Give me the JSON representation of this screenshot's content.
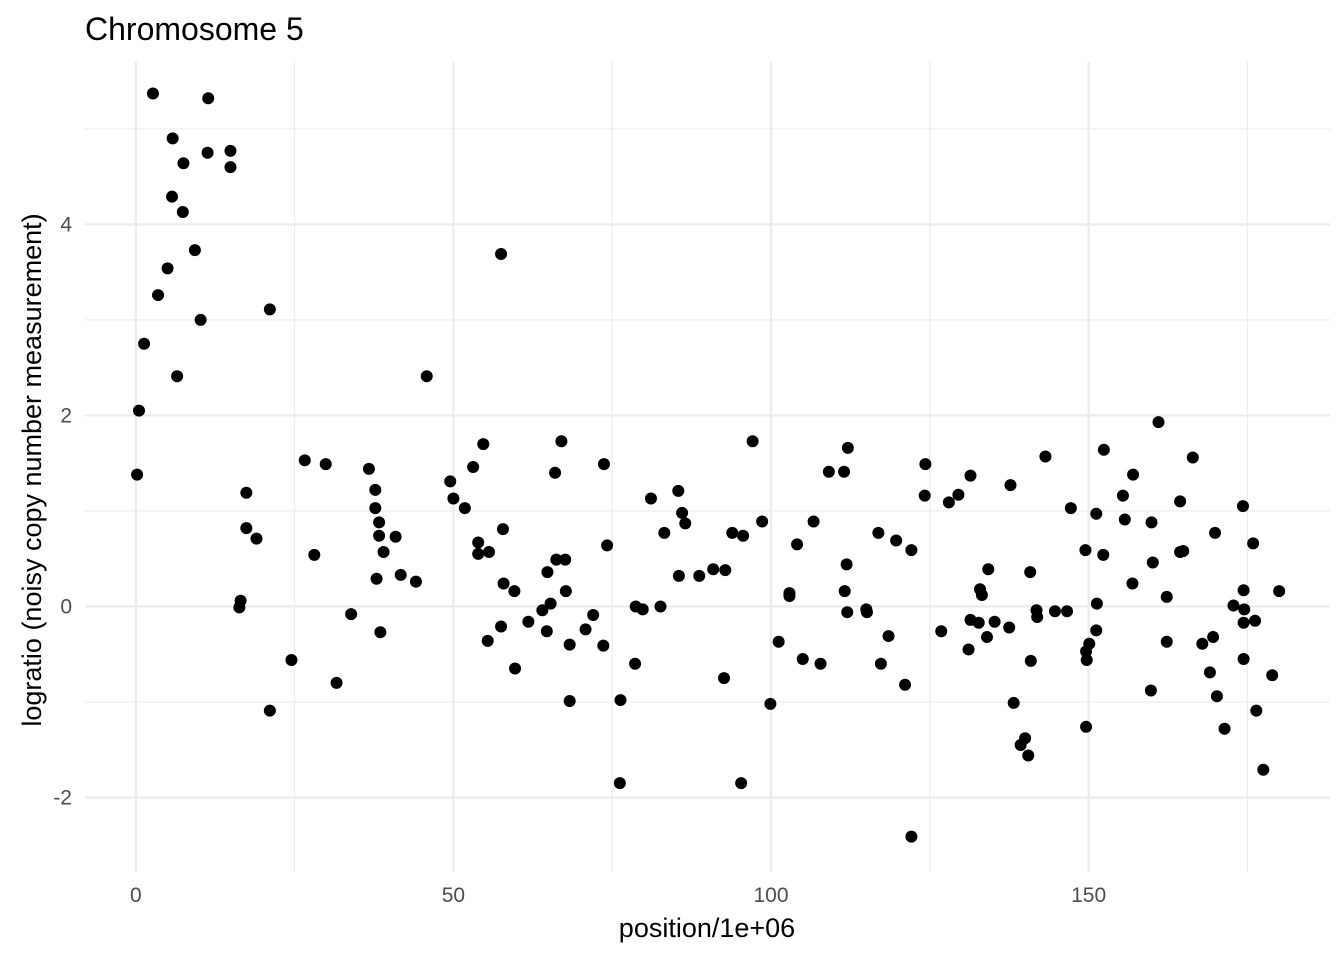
{
  "chart_data": {
    "type": "scatter",
    "title": "Chromosome 5",
    "xlabel": "position/1e+06",
    "ylabel": "logratio (noisy copy number measurement)",
    "xlim": [
      -8,
      188
    ],
    "ylim": [
      -2.78,
      5.7
    ],
    "x_ticks": [
      0,
      50,
      100,
      150
    ],
    "x_tick_labels": [
      "0",
      "50",
      "100",
      "150"
    ],
    "y_ticks": [
      -2,
      0,
      2,
      4
    ],
    "y_tick_labels": [
      "-2",
      "0",
      "2",
      "4"
    ],
    "x_minor": [
      25,
      75,
      125,
      175
    ],
    "y_minor": [
      -1,
      1,
      3,
      5
    ],
    "grid": true,
    "point_color": "#000000",
    "points": [
      [
        0.2,
        1.38
      ],
      [
        0.5,
        2.05
      ],
      [
        1.3,
        2.75
      ],
      [
        2.7,
        5.37
      ],
      [
        3.5,
        3.26
      ],
      [
        5.0,
        3.54
      ],
      [
        5.7,
        4.29
      ],
      [
        5.8,
        4.9
      ],
      [
        6.5,
        2.41
      ],
      [
        7.4,
        4.13
      ],
      [
        7.5,
        4.64
      ],
      [
        9.3,
        3.73
      ],
      [
        10.2,
        3.0
      ],
      [
        11.3,
        4.75
      ],
      [
        11.4,
        5.32
      ],
      [
        14.9,
        4.6
      ],
      [
        14.9,
        4.77
      ],
      [
        16.3,
        -0.01
      ],
      [
        16.5,
        0.06
      ],
      [
        17.4,
        0.82
      ],
      [
        17.4,
        1.19
      ],
      [
        19.0,
        0.71
      ],
      [
        21.1,
        -1.09
      ],
      [
        21.1,
        3.11
      ],
      [
        24.5,
        -0.56
      ],
      [
        26.6,
        1.53
      ],
      [
        28.1,
        0.54
      ],
      [
        29.9,
        1.49
      ],
      [
        31.6,
        -0.8
      ],
      [
        33.9,
        -0.08
      ],
      [
        36.7,
        1.44
      ],
      [
        37.7,
        1.22
      ],
      [
        37.7,
        1.03
      ],
      [
        37.9,
        0.29
      ],
      [
        38.3,
        0.74
      ],
      [
        38.3,
        0.88
      ],
      [
        38.5,
        -0.27
      ],
      [
        39.0,
        0.57
      ],
      [
        40.9,
        0.73
      ],
      [
        41.7,
        0.33
      ],
      [
        44.1,
        0.26
      ],
      [
        45.8,
        2.41
      ],
      [
        49.5,
        1.31
      ],
      [
        50.0,
        1.13
      ],
      [
        51.8,
        1.03
      ],
      [
        53.1,
        1.46
      ],
      [
        53.9,
        0.67
      ],
      [
        53.9,
        0.55
      ],
      [
        54.7,
        1.7
      ],
      [
        55.4,
        -0.36
      ],
      [
        55.6,
        0.57
      ],
      [
        57.5,
        -0.21
      ],
      [
        57.5,
        3.69
      ],
      [
        57.8,
        0.81
      ],
      [
        57.9,
        0.24
      ],
      [
        59.6,
        0.16
      ],
      [
        59.7,
        -0.65
      ],
      [
        61.8,
        -0.16
      ],
      [
        64.0,
        -0.04
      ],
      [
        64.7,
        -0.26
      ],
      [
        64.8,
        0.36
      ],
      [
        65.3,
        0.03
      ],
      [
        66.0,
        1.4
      ],
      [
        66.2,
        0.49
      ],
      [
        67.0,
        1.73
      ],
      [
        67.6,
        0.49
      ],
      [
        67.7,
        0.16
      ],
      [
        68.3,
        -0.4
      ],
      [
        68.3,
        -0.99
      ],
      [
        70.8,
        -0.24
      ],
      [
        72.0,
        -0.09
      ],
      [
        73.6,
        -0.41
      ],
      [
        73.7,
        1.49
      ],
      [
        74.2,
        0.64
      ],
      [
        76.2,
        -1.85
      ],
      [
        76.3,
        -0.98
      ],
      [
        78.6,
        -0.6
      ],
      [
        78.7,
        0.0
      ],
      [
        79.8,
        -0.03
      ],
      [
        81.1,
        1.13
      ],
      [
        82.6,
        0.0
      ],
      [
        83.2,
        0.77
      ],
      [
        85.4,
        1.21
      ],
      [
        85.5,
        0.32
      ],
      [
        86.0,
        0.98
      ],
      [
        86.5,
        0.87
      ],
      [
        88.7,
        0.32
      ],
      [
        90.9,
        0.39
      ],
      [
        92.6,
        -0.75
      ],
      [
        92.8,
        0.38
      ],
      [
        93.9,
        0.77
      ],
      [
        95.3,
        -1.85
      ],
      [
        95.6,
        0.74
      ],
      [
        97.1,
        1.73
      ],
      [
        98.6,
        0.89
      ],
      [
        99.9,
        -1.02
      ],
      [
        101.2,
        -0.37
      ],
      [
        102.9,
        0.14
      ],
      [
        102.9,
        0.11
      ],
      [
        104.1,
        0.65
      ],
      [
        105.0,
        -0.55
      ],
      [
        106.7,
        0.89
      ],
      [
        107.8,
        -0.6
      ],
      [
        109.1,
        1.41
      ],
      [
        111.5,
        1.41
      ],
      [
        111.6,
        0.16
      ],
      [
        111.9,
        0.44
      ],
      [
        112.0,
        -0.06
      ],
      [
        112.1,
        1.66
      ],
      [
        115.0,
        -0.03
      ],
      [
        115.1,
        -0.06
      ],
      [
        116.9,
        0.77
      ],
      [
        117.3,
        -0.6
      ],
      [
        118.5,
        -0.31
      ],
      [
        119.7,
        0.69
      ],
      [
        121.1,
        -0.82
      ],
      [
        122.1,
        0.59
      ],
      [
        122.1,
        -2.41
      ],
      [
        124.2,
        1.16
      ],
      [
        124.3,
        1.49
      ],
      [
        126.8,
        -0.26
      ],
      [
        128.0,
        1.09
      ],
      [
        129.5,
        1.17
      ],
      [
        131.1,
        -0.45
      ],
      [
        131.4,
        1.37
      ],
      [
        131.4,
        -0.14
      ],
      [
        132.7,
        -0.17
      ],
      [
        132.9,
        0.18
      ],
      [
        133.2,
        0.12
      ],
      [
        134.0,
        -0.32
      ],
      [
        134.2,
        0.39
      ],
      [
        135.2,
        -0.16
      ],
      [
        137.5,
        -0.22
      ],
      [
        137.7,
        1.27
      ],
      [
        138.2,
        -1.01
      ],
      [
        139.3,
        -1.45
      ],
      [
        140.0,
        -1.38
      ],
      [
        140.5,
        -1.56
      ],
      [
        140.8,
        0.36
      ],
      [
        140.9,
        -0.57
      ],
      [
        141.8,
        -0.04
      ],
      [
        141.9,
        -0.11
      ],
      [
        143.2,
        1.57
      ],
      [
        144.7,
        -0.05
      ],
      [
        146.6,
        -0.05
      ],
      [
        147.2,
        1.03
      ],
      [
        149.5,
        0.59
      ],
      [
        149.6,
        -0.47
      ],
      [
        149.6,
        -1.26
      ],
      [
        149.7,
        -0.56
      ],
      [
        150.1,
        -0.39
      ],
      [
        151.2,
        -0.25
      ],
      [
        151.2,
        0.97
      ],
      [
        151.3,
        0.03
      ],
      [
        152.3,
        0.54
      ],
      [
        152.4,
        1.64
      ],
      [
        155.4,
        1.16
      ],
      [
        155.7,
        0.91
      ],
      [
        156.9,
        0.24
      ],
      [
        157.0,
        1.38
      ],
      [
        159.8,
        -0.88
      ],
      [
        159.9,
        0.88
      ],
      [
        160.1,
        0.46
      ],
      [
        161.0,
        1.93
      ],
      [
        162.3,
        -0.37
      ],
      [
        162.3,
        0.1
      ],
      [
        164.4,
        1.1
      ],
      [
        164.4,
        0.57
      ],
      [
        164.9,
        0.58
      ],
      [
        166.4,
        1.56
      ],
      [
        167.9,
        -0.39
      ],
      [
        169.1,
        -0.69
      ],
      [
        169.6,
        -0.32
      ],
      [
        169.9,
        0.77
      ],
      [
        170.2,
        -0.94
      ],
      [
        171.4,
        -1.28
      ],
      [
        172.8,
        0.01
      ],
      [
        174.3,
        1.05
      ],
      [
        174.4,
        -0.17
      ],
      [
        174.4,
        0.17
      ],
      [
        174.4,
        -0.55
      ],
      [
        174.5,
        -0.03
      ],
      [
        175.9,
        0.66
      ],
      [
        176.2,
        -0.15
      ],
      [
        176.4,
        -1.09
      ],
      [
        177.5,
        -1.71
      ],
      [
        178.9,
        -0.72
      ],
      [
        180.0,
        0.16
      ]
    ]
  }
}
